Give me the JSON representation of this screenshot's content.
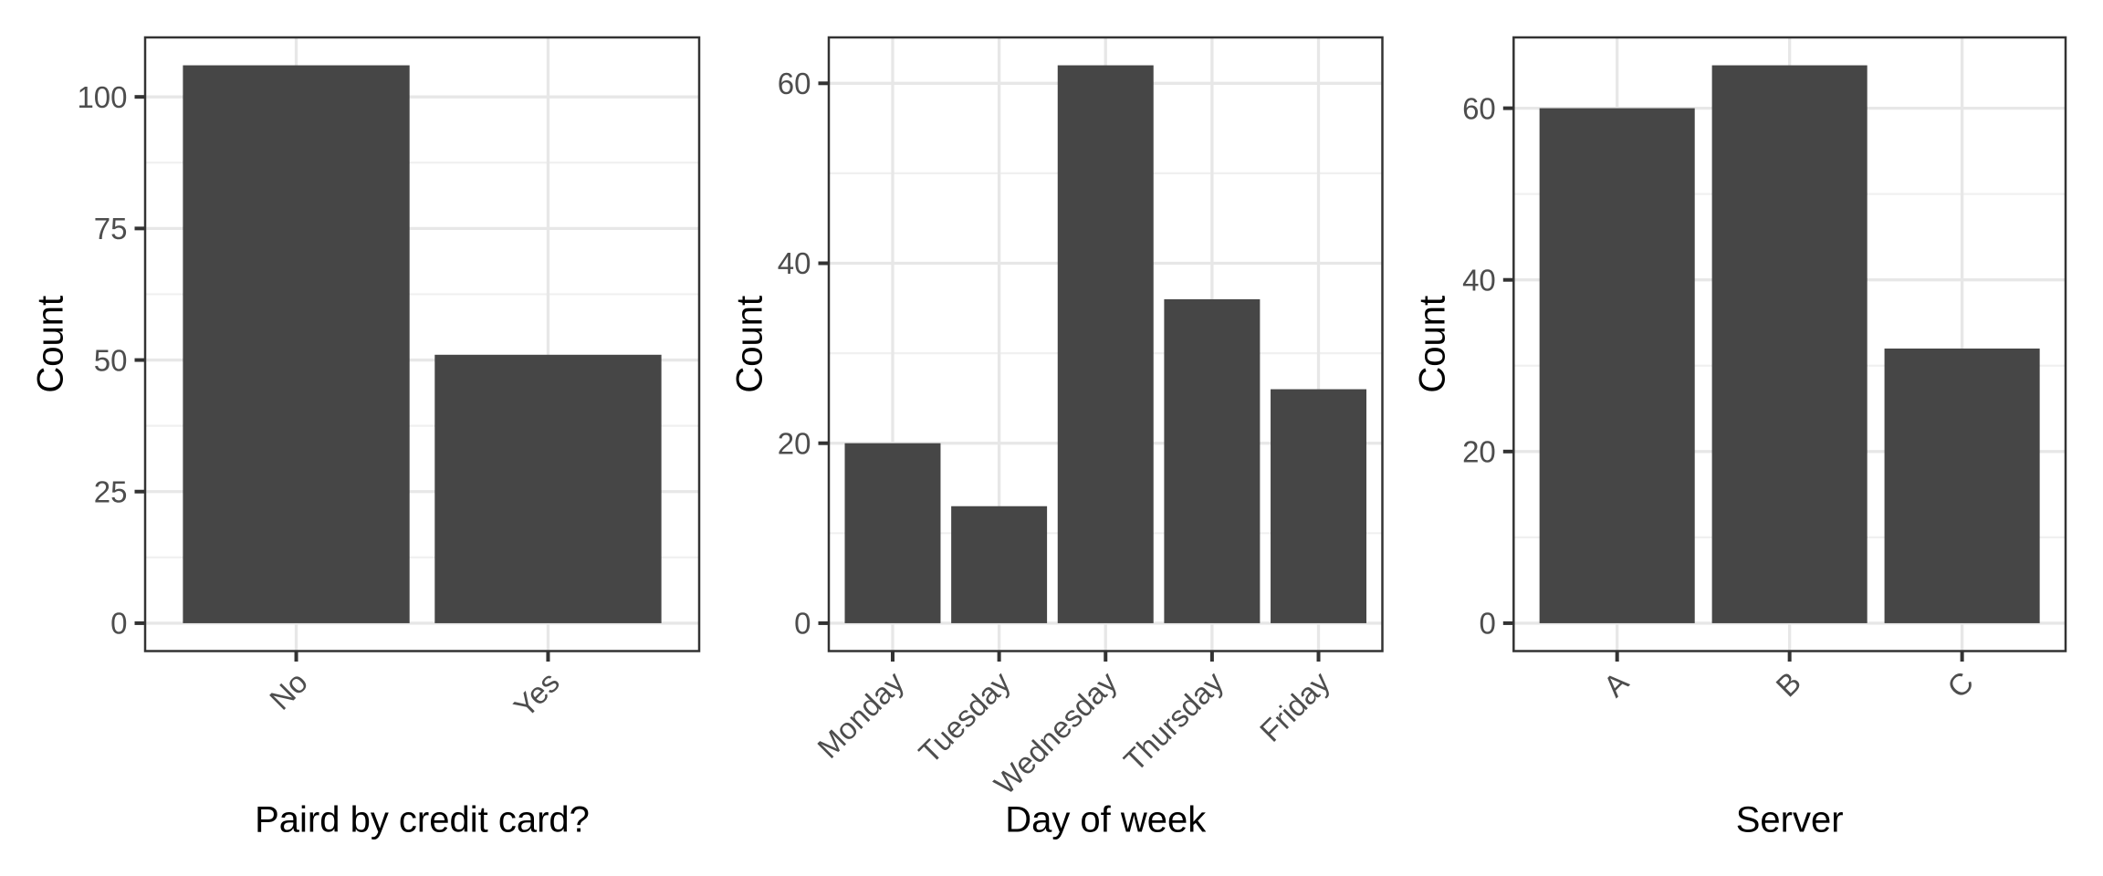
{
  "figure": {
    "background": "#ffffff"
  },
  "style": {
    "bar_fill": "#464646",
    "panel_border": "#333333",
    "axis_tick": "#333333",
    "grid_major": "#e7e7e7",
    "grid_minor": "#f0f0f0",
    "tick_label_color": "#4d4d4d",
    "axis_title_color": "#000000",
    "background": "#ffffff"
  },
  "chart_data": [
    {
      "type": "bar",
      "title": "",
      "xlabel": "Paird by credit card?",
      "ylabel": "Count",
      "categories": [
        "No",
        "Yes"
      ],
      "values": [
        106,
        51
      ],
      "y_ticks": [
        0,
        25,
        50,
        75,
        100
      ],
      "ylim": [
        -5.3,
        111.3
      ],
      "grid": true,
      "legend": false,
      "x_tick_angle": 45
    },
    {
      "type": "bar",
      "title": "",
      "xlabel": "Day of week",
      "ylabel": "Count",
      "categories": [
        "Monday",
        "Tuesday",
        "Wednesday",
        "Thursday",
        "Friday"
      ],
      "values": [
        20,
        13,
        62,
        36,
        26
      ],
      "y_ticks": [
        0,
        20,
        40,
        60
      ],
      "ylim": [
        -3.1,
        65.1
      ],
      "grid": true,
      "legend": false,
      "x_tick_angle": 45
    },
    {
      "type": "bar",
      "title": "",
      "xlabel": "Server",
      "ylabel": "Count",
      "categories": [
        "A",
        "B",
        "C"
      ],
      "values": [
        60,
        65,
        32
      ],
      "y_ticks": [
        0,
        20,
        40,
        60
      ],
      "ylim": [
        -3.25,
        68.25
      ],
      "grid": true,
      "legend": false,
      "x_tick_angle": 45
    }
  ]
}
